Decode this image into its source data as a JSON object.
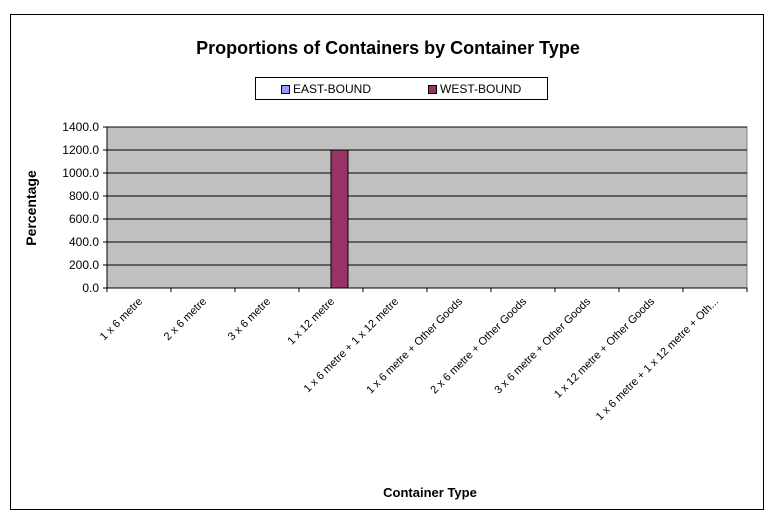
{
  "chart_data": {
    "type": "bar",
    "title": "Proportions of Containers by Container Type",
    "xlabel": "Container Type",
    "ylabel": "Percentage",
    "ylim": [
      0,
      1400
    ],
    "yticks": [
      "0.0",
      "200.0",
      "400.0",
      "600.0",
      "800.0",
      "1000.0",
      "1200.0",
      "1400.0"
    ],
    "categories": [
      "1 x 6 metre",
      "2 x 6 metre",
      "3 x 6 metre",
      "1 x 12 metre",
      "1 x 6 metre + 1 x 12 metre",
      "1 x 6 metre + Other Goods",
      "2 x 6 metre + Other Goods",
      "3 x 6 metre + Other Goods",
      "1 x 12 metre + Other Goods",
      "1 x 6 metre + 1 x 12 metre + Oth..."
    ],
    "series": [
      {
        "name": "EAST-BOUND",
        "color": "#9999ff",
        "values": [
          0,
          0,
          0,
          0,
          0,
          0,
          0,
          0,
          0,
          0
        ]
      },
      {
        "name": "WEST-BOUND",
        "color": "#993366",
        "values": [
          0,
          0,
          0,
          1200,
          0,
          0,
          0,
          0,
          0,
          0
        ]
      }
    ],
    "grid": true,
    "legend_position": "top",
    "plot_background": "#c0c0c0"
  }
}
